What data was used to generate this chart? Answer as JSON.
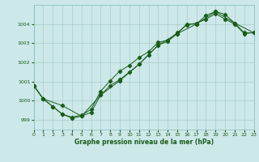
{
  "xlabel": "Graphe pression niveau de la mer (hPa)",
  "bg_color": "#cce8e8",
  "grid_color": "#aacccc",
  "line_color": "#1a5c1a",
  "xmin": 0,
  "xmax": 23,
  "ymin": 998.5,
  "ymax": 1005.0,
  "yticks": [
    999,
    1000,
    1001,
    1002,
    1003,
    1004
  ],
  "series1_x": [
    0,
    1,
    2,
    3,
    4,
    5,
    6,
    7,
    8,
    9,
    10,
    11,
    12,
    13,
    14,
    15,
    16,
    17,
    18,
    19,
    20,
    21,
    22,
    23
  ],
  "series1_y": [
    1000.8,
    1000.1,
    999.7,
    999.3,
    999.1,
    999.2,
    999.4,
    1000.3,
    1000.8,
    1001.1,
    1001.5,
    1001.9,
    1002.4,
    1002.9,
    1003.1,
    1003.5,
    1004.0,
    1004.0,
    1004.45,
    1004.65,
    1004.5,
    1004.05,
    1003.55,
    1003.55
  ],
  "series2_x": [
    0,
    1,
    2,
    3,
    4,
    5,
    6,
    7,
    8,
    9,
    10,
    11,
    12,
    13,
    14,
    15,
    16,
    17,
    18,
    19,
    20,
    21,
    22,
    23
  ],
  "series2_y": [
    1000.8,
    1000.1,
    999.7,
    999.3,
    999.15,
    999.25,
    999.55,
    1000.5,
    1001.05,
    1001.55,
    1001.85,
    1002.25,
    1002.55,
    1003.05,
    1003.15,
    1003.55,
    1003.95,
    1004.05,
    1004.25,
    1004.55,
    1004.25,
    1004.0,
    1003.5,
    1003.55
  ],
  "series3_x": [
    0,
    1,
    3,
    5,
    7,
    9,
    11,
    13,
    15,
    17,
    19,
    21,
    23
  ],
  "series3_y": [
    1000.8,
    1000.1,
    999.75,
    999.2,
    1000.3,
    1001.05,
    1001.9,
    1002.9,
    1003.5,
    1004.0,
    1004.65,
    1004.05,
    1003.55
  ]
}
